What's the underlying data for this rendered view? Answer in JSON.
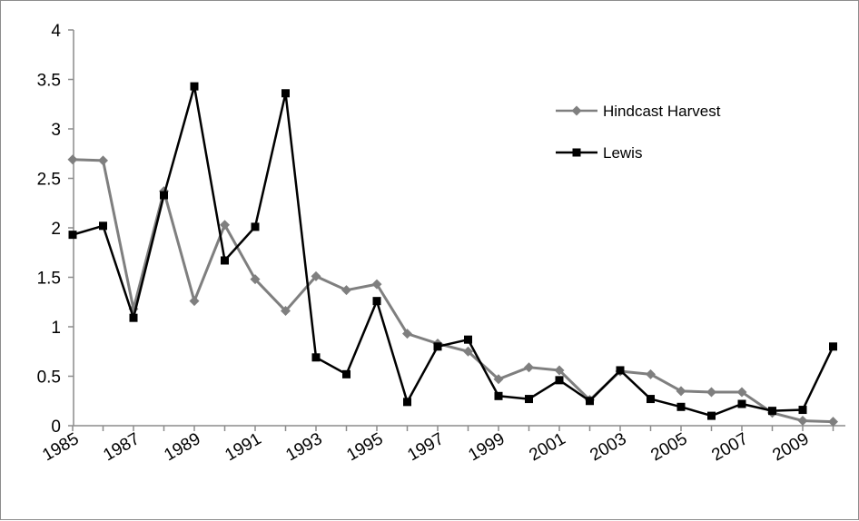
{
  "chart_data": {
    "type": "line",
    "title": "",
    "xlabel": "",
    "ylabel": "",
    "x": [
      1985,
      1986,
      1987,
      1988,
      1989,
      1990,
      1991,
      1992,
      1993,
      1994,
      1995,
      1996,
      1997,
      1998,
      1999,
      2000,
      2001,
      2002,
      2003,
      2004,
      2005,
      2006,
      2007,
      2008,
      2009,
      2010
    ],
    "x_tick_labels": [
      "1985",
      "1987",
      "1989",
      "1991",
      "1993",
      "1995",
      "1997",
      "1999",
      "2001",
      "2003",
      "2005",
      "2007",
      "2009"
    ],
    "y_tick_labels": [
      "0",
      "0.5",
      "1",
      "1.5",
      "2",
      "2.5",
      "3",
      "3.5",
      "4"
    ],
    "ylim": [
      0,
      4
    ],
    "grid": false,
    "legend_position": "right",
    "series": [
      {
        "name": "Hindcast Harvest",
        "color": "#7f7f7f",
        "marker": "diamond",
        "values": [
          2.69,
          2.68,
          1.18,
          2.37,
          1.26,
          2.03,
          1.48,
          1.16,
          1.51,
          1.37,
          1.43,
          0.93,
          0.83,
          0.75,
          0.47,
          0.59,
          0.56,
          0.26,
          0.55,
          0.52,
          0.35,
          0.34,
          0.34,
          0.13,
          0.05,
          0.04
        ]
      },
      {
        "name": "Lewis",
        "color": "#000000",
        "marker": "square",
        "values": [
          1.93,
          2.02,
          1.09,
          2.33,
          3.43,
          1.67,
          2.01,
          3.36,
          0.69,
          0.52,
          1.26,
          0.24,
          0.8,
          0.87,
          0.3,
          0.27,
          0.46,
          0.25,
          0.56,
          0.27,
          0.19,
          0.1,
          0.22,
          0.15,
          0.16,
          0.8
        ]
      }
    ]
  }
}
